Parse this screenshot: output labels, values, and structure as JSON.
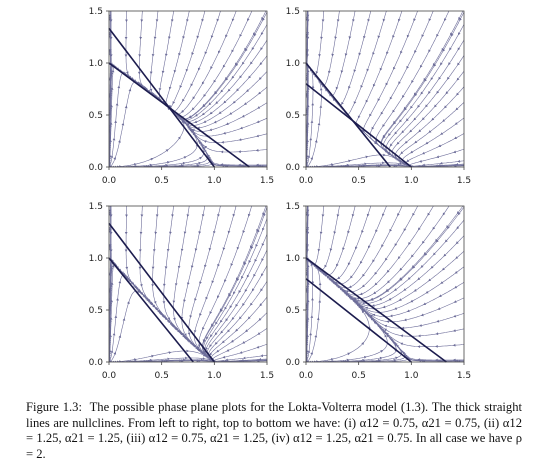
{
  "chart_data": [
    {
      "type": "phase-plane",
      "panel": "(i)",
      "params": {
        "alpha12": 0.75,
        "alpha21": 0.75,
        "rho": 2
      },
      "xlim": [
        0,
        1.5
      ],
      "ylim": [
        0,
        1.5
      ],
      "xticks": [
        "0.0",
        "0.5",
        "1.0",
        "1.5"
      ],
      "yticks": [
        "0.0",
        "0.5",
        "1.0",
        "1.5"
      ],
      "nullclines": [
        {
          "name": "",
          "from": [
            0,
            1.0
          ],
          "to": [
            1.333,
            0
          ]
        },
        {
          "name": "",
          "from": [
            0,
            1.333
          ],
          "to": [
            1.0,
            0
          ]
        }
      ]
    },
    {
      "type": "phase-plane",
      "panel": "(ii)",
      "params": {
        "alpha12": 1.25,
        "alpha21": 1.25,
        "rho": 2
      },
      "xlim": [
        0,
        1.5
      ],
      "ylim": [
        0,
        1.5
      ],
      "xticks": [
        "0.0",
        "0.5",
        "1.0",
        "1.5"
      ],
      "yticks": [
        "0.0",
        "0.5",
        "1.0",
        "1.5"
      ],
      "nullclines": [
        {
          "name": "",
          "from": [
            0,
            1.0
          ],
          "to": [
            0.8,
            0
          ]
        },
        {
          "name": "",
          "from": [
            0,
            0.8
          ],
          "to": [
            1.0,
            0
          ]
        }
      ]
    },
    {
      "type": "phase-plane",
      "panel": "(iii)",
      "params": {
        "alpha12": 0.75,
        "alpha21": 1.25,
        "rho": 2
      },
      "xlim": [
        0,
        1.5
      ],
      "ylim": [
        0,
        1.5
      ],
      "xticks": [
        "0.0",
        "0.5",
        "1.0",
        "1.5"
      ],
      "yticks": [
        "0.0",
        "0.5",
        "1.0",
        "1.5"
      ],
      "nullclines": [
        {
          "name": "",
          "from": [
            0,
            1.0
          ],
          "to": [
            0.8,
            0
          ]
        },
        {
          "name": "",
          "from": [
            0,
            1.333
          ],
          "to": [
            1.0,
            0
          ]
        }
      ]
    },
    {
      "type": "phase-plane",
      "panel": "(iv)",
      "params": {
        "alpha12": 1.25,
        "alpha21": 0.75,
        "rho": 2
      },
      "xlim": [
        0,
        1.5
      ],
      "ylim": [
        0,
        1.5
      ],
      "xticks": [
        "0.0",
        "0.5",
        "1.0",
        "1.5"
      ],
      "yticks": [
        "0.0",
        "0.5",
        "1.0",
        "1.5"
      ],
      "nullclines": [
        {
          "name": "",
          "from": [
            0,
            0.8
          ],
          "to": [
            1.0,
            0
          ]
        },
        {
          "name": "",
          "from": [
            0,
            1.0
          ],
          "to": [
            1.333,
            0
          ]
        }
      ]
    }
  ],
  "caption": {
    "label": "Figure 1.3:",
    "text": "The possible phase plane plots for the Lokta-Volterra model (1.3). The thick straight lines are nullclines. From left to right, top to bottom we have: (i) α12 = 0.75, α21 = 0.75, (ii) α12 = 1.25, α21 = 1.25, (iii) α12 = 0.75, α21 = 1.25, (iv) α12 = 1.25, α21 = 0.75. In all case we have ρ = 2."
  },
  "colors": {
    "stream": "#6e6e9a",
    "nullcline": "#1c1c4e",
    "frame": "#444444"
  }
}
